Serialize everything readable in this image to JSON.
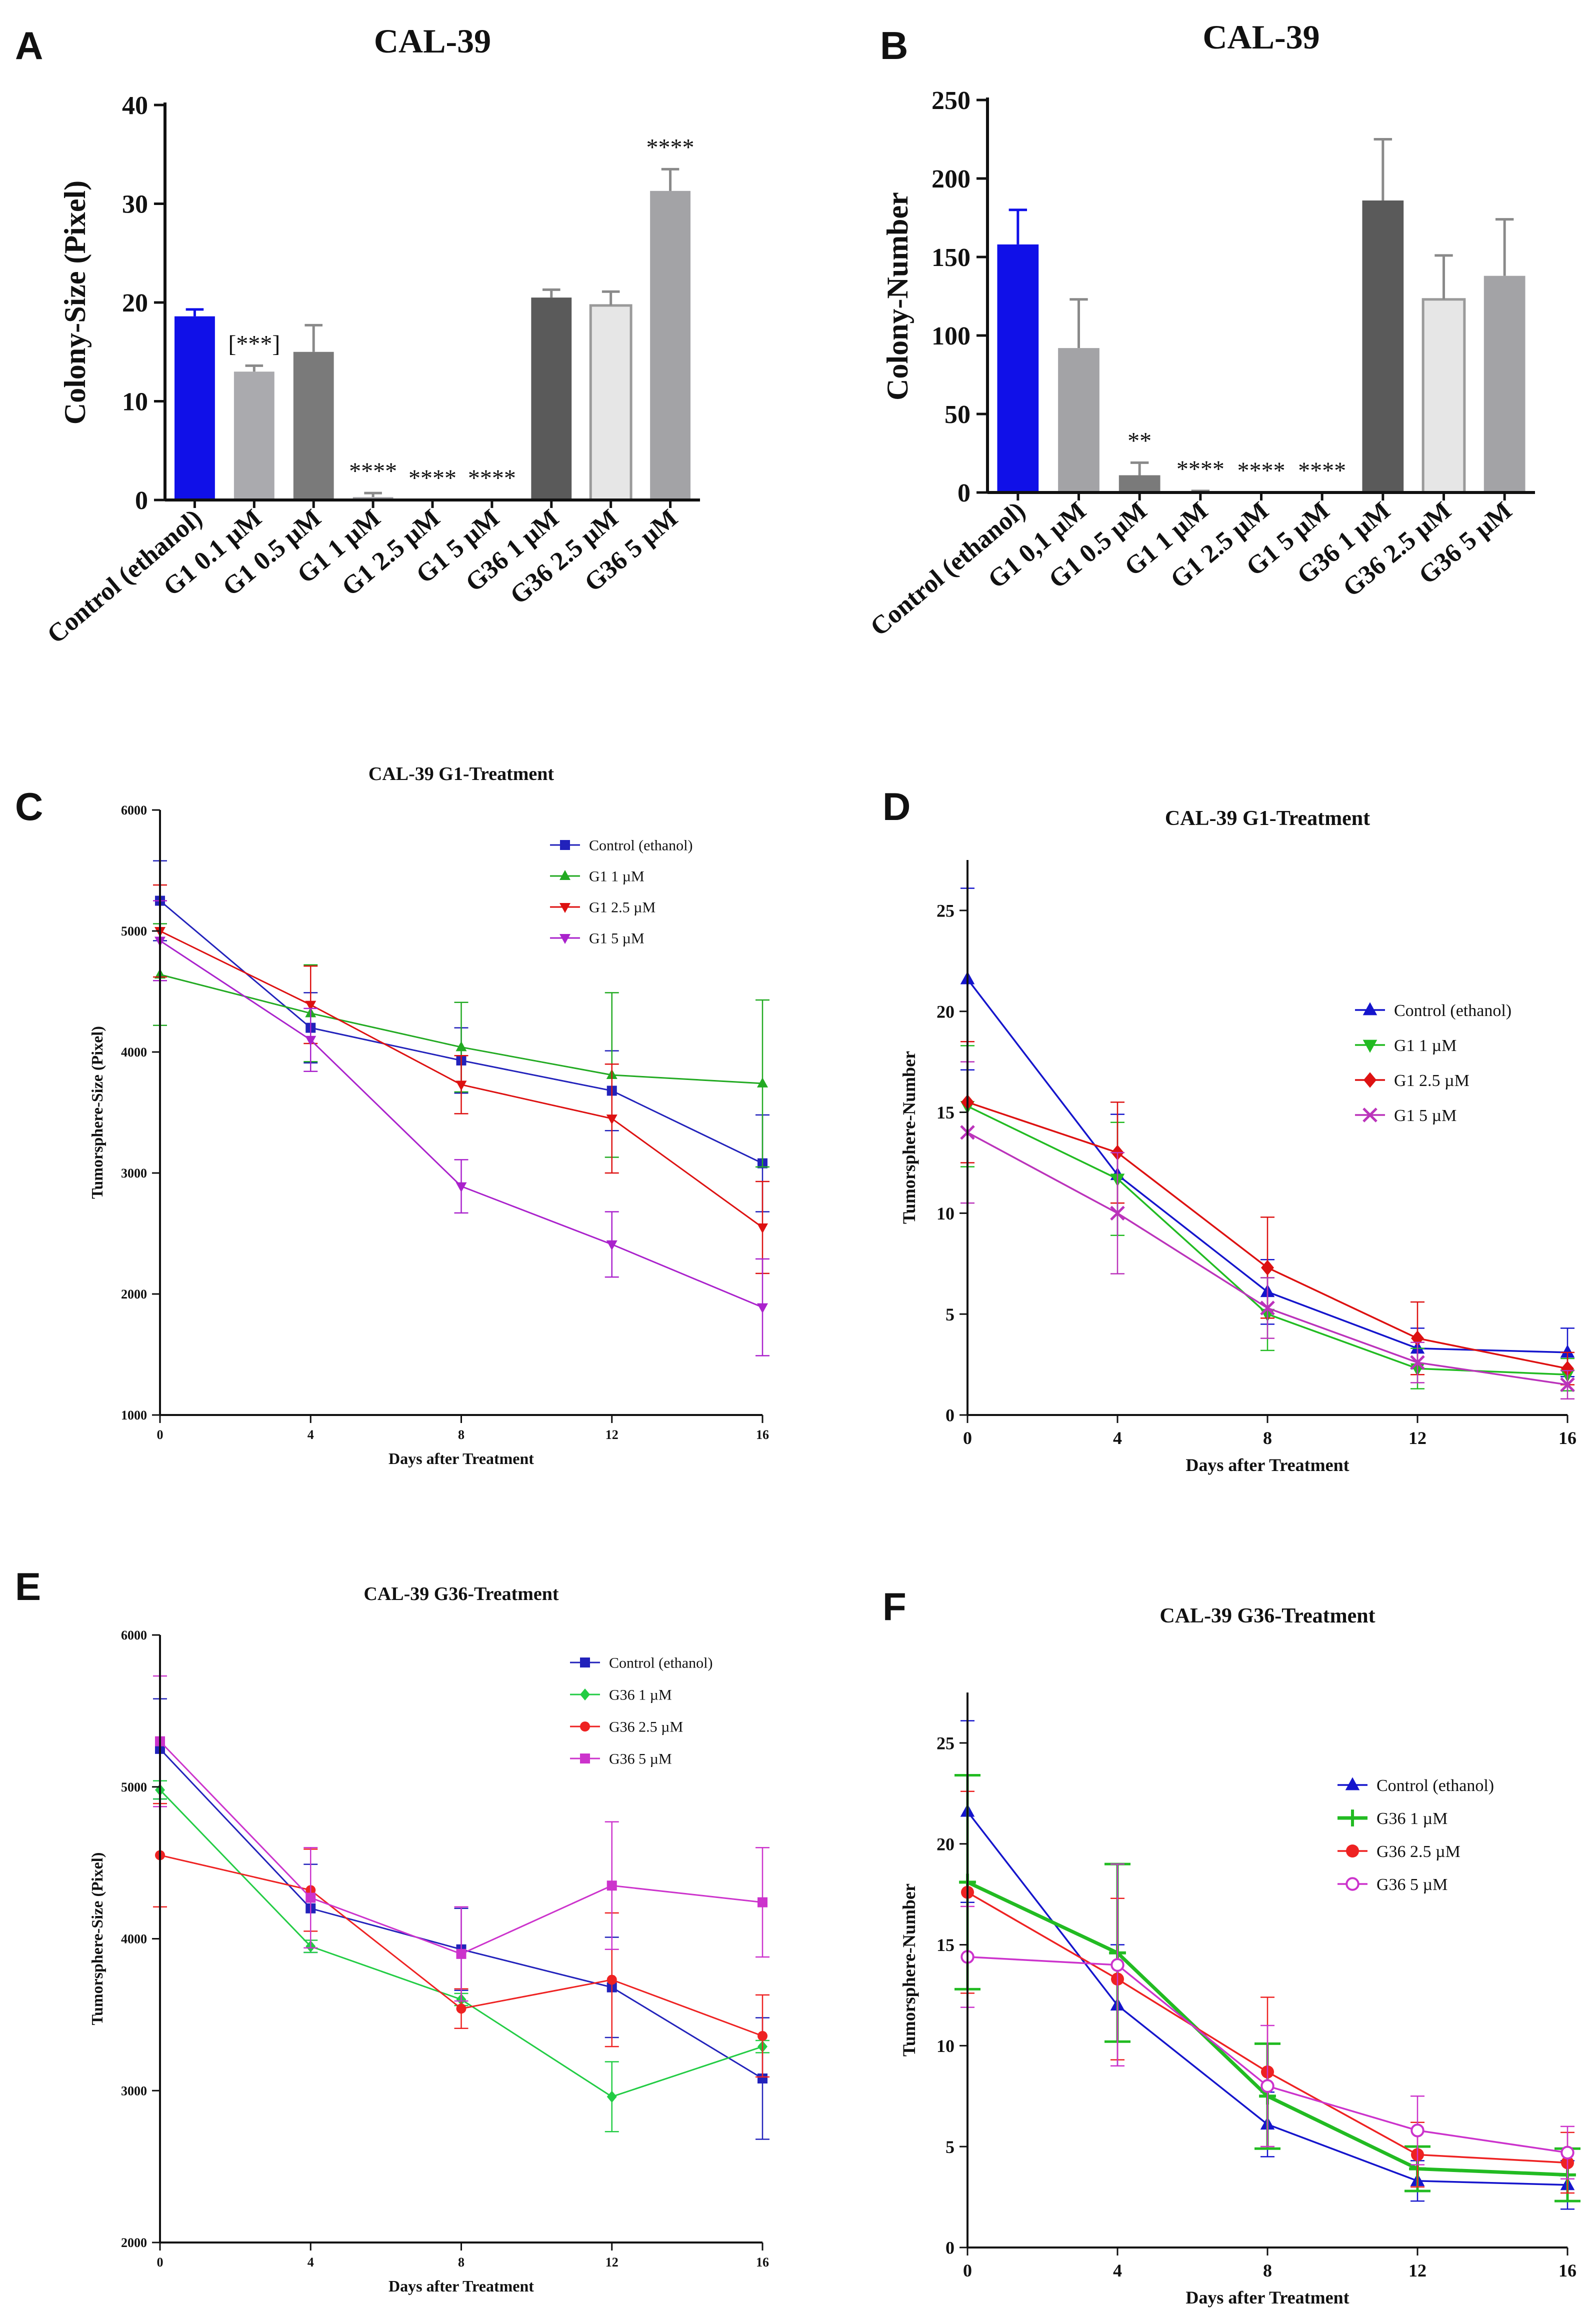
{
  "figure": {
    "panels": [
      "A",
      "B",
      "C",
      "D",
      "E",
      "F"
    ]
  },
  "chart_data": [
    {
      "id": "A",
      "type": "bar",
      "title": "CAL-39",
      "xlabel": "",
      "ylabel": "Colony-Size (Pixel)",
      "ylim": [
        0,
        40
      ],
      "yticks": [
        0,
        10,
        20,
        30,
        40
      ],
      "categories": [
        "Control (ethanol)",
        "G1 0.1 µM",
        "G1 0.5 µM",
        "G1 1 µM",
        "G1 2.5 µM",
        "G1 5 µM",
        "G36 1 µM",
        "G36 2.5 µM",
        "G36 5 µM"
      ],
      "values": [
        18.6,
        13.0,
        15.0,
        0.3,
        0,
        0,
        20.5,
        19.7,
        31.3
      ],
      "errors": [
        0.7,
        0.6,
        2.7,
        0.4,
        0,
        0,
        0.8,
        1.4,
        2.2
      ],
      "bar_colors": [
        "#1010e8",
        "#aaaaae",
        "#7a7a7a",
        "#aaaaae",
        "#aaaaae",
        "#aaaaae",
        "#5a5a5a",
        "#e6e6e6",
        "#a3a3a6"
      ],
      "significance": [
        "",
        "[***]",
        "",
        "****",
        "****",
        "****",
        "",
        "",
        "****"
      ]
    },
    {
      "id": "B",
      "type": "bar",
      "title": "CAL-39",
      "xlabel": "",
      "ylabel": "Colony-Number",
      "ylim": [
        0,
        250
      ],
      "yticks": [
        0,
        50,
        100,
        150,
        200,
        250
      ],
      "categories": [
        "Control (ethanol)",
        "G1 0,1 µM",
        "G1 0.5 µM",
        "G1 1 µM",
        "G1 2.5 µM",
        "G1 5 µM",
        "G36 1 µM",
        "G36 2.5 µM",
        "G36 5 µM"
      ],
      "values": [
        158,
        92,
        11,
        0.5,
        0,
        0,
        186,
        123,
        138
      ],
      "errors": [
        22,
        31,
        8,
        0.5,
        0,
        0,
        39,
        28,
        36
      ],
      "bar_colors": [
        "#1010e8",
        "#a3a3a6",
        "#7a7a7a",
        "#a3a3a6",
        "#a3a3a6",
        "#a3a3a6",
        "#5a5a5a",
        "#e6e6e6",
        "#a3a3a6"
      ],
      "significance": [
        "",
        "",
        "**",
        "****",
        "****",
        "****",
        "",
        "",
        ""
      ]
    },
    {
      "id": "C",
      "type": "line",
      "title": "CAL-39 G1-Treatment",
      "xlabel": "Days after Treatment",
      "ylabel": "Tumorsphere-Size (Pixel)",
      "x": [
        0,
        4,
        8,
        12,
        16
      ],
      "xlim": [
        0,
        16
      ],
      "ylim": [
        1000,
        6000
      ],
      "yticks": [
        1000,
        2000,
        3000,
        4000,
        5000,
        6000
      ],
      "legend_position": "top-right",
      "series": [
        {
          "name": "Control (ethanol)",
          "color": "#2222bb",
          "marker": "square",
          "values": [
            5250,
            4200,
            3930,
            3680,
            3080
          ],
          "errors": [
            330,
            290,
            270,
            330,
            400
          ]
        },
        {
          "name": "G1 1 µM",
          "color": "#22aa22",
          "marker": "triangle-up",
          "values": [
            4640,
            4320,
            4040,
            3810,
            3740
          ],
          "errors": [
            420,
            400,
            370,
            680,
            690
          ]
        },
        {
          "name": "G1 2.5 µM",
          "color": "#dd1111",
          "marker": "triangle-down",
          "values": [
            5000,
            4390,
            3730,
            3450,
            2550
          ],
          "errors": [
            380,
            320,
            240,
            450,
            380
          ]
        },
        {
          "name": "G1 5 µM",
          "color": "#aa22cc",
          "marker": "triangle-down",
          "values": [
            4920,
            4100,
            2890,
            2410,
            1890
          ],
          "errors": [
            330,
            260,
            220,
            270,
            400
          ]
        }
      ]
    },
    {
      "id": "D",
      "type": "line",
      "title": "CAL-39 G1-Treatment",
      "xlabel": "Days after Treatment",
      "ylabel": "Tumorsphere-Number",
      "x": [
        0,
        4,
        8,
        12,
        16
      ],
      "xlim": [
        0,
        16
      ],
      "ylim": [
        0,
        27.5
      ],
      "yticks": [
        0,
        5,
        10,
        15,
        20,
        25
      ],
      "legend_position": "right",
      "series": [
        {
          "name": "Control (ethanol)",
          "color": "#1515cc",
          "marker": "triangle-up",
          "values": [
            21.6,
            11.9,
            6.1,
            3.3,
            3.1
          ],
          "errors": [
            4.5,
            3.0,
            1.6,
            1.0,
            1.2
          ]
        },
        {
          "name": "G1 1 µM",
          "color": "#22bb22",
          "marker": "triangle-down",
          "values": [
            15.3,
            11.7,
            5.0,
            2.3,
            2.0
          ],
          "errors": [
            3.0,
            2.8,
            1.8,
            1.0,
            0.8
          ]
        },
        {
          "name": "G1 2.5 µM",
          "color": "#dd1111",
          "marker": "diamond",
          "values": [
            15.5,
            13.0,
            7.3,
            3.8,
            2.3
          ],
          "errors": [
            3.0,
            2.5,
            2.5,
            1.8,
            0.8
          ]
        },
        {
          "name": "G1 5 µM",
          "color": "#bb33bb",
          "marker": "x",
          "values": [
            14.0,
            10.0,
            5.3,
            2.6,
            1.5
          ],
          "errors": [
            3.5,
            3.0,
            1.5,
            1.0,
            0.7
          ]
        }
      ]
    },
    {
      "id": "E",
      "type": "line",
      "title": "CAL-39 G36-Treatment",
      "xlabel": "Days after Treatment",
      "ylabel": "Tumorsphere-Size (Pixel)",
      "x": [
        0,
        4,
        8,
        12,
        16
      ],
      "xlim": [
        0,
        16
      ],
      "ylim": [
        2000,
        6000
      ],
      "yticks": [
        2000,
        3000,
        4000,
        5000,
        6000
      ],
      "legend_position": "top-right",
      "series": [
        {
          "name": "Control (ethanol)",
          "color": "#2222bb",
          "marker": "square",
          "values": [
            5250,
            4200,
            3930,
            3680,
            3080
          ],
          "errors": [
            330,
            290,
            270,
            330,
            400
          ]
        },
        {
          "name": "G36 1 µM",
          "color": "#22cc44",
          "marker": "diamond",
          "values": [
            4980,
            3950,
            3600,
            2960,
            3290
          ],
          "errors": [
            60,
            40,
            40,
            230,
            40
          ]
        },
        {
          "name": "G36 2.5 µM",
          "color": "#ee2222",
          "marker": "circle",
          "values": [
            4550,
            4320,
            3540,
            3730,
            3360
          ],
          "errors": [
            340,
            270,
            130,
            440,
            270
          ]
        },
        {
          "name": "G36 5 µM",
          "color": "#cc33cc",
          "marker": "square",
          "values": [
            5300,
            4270,
            3900,
            4350,
            4240
          ],
          "errors": [
            430,
            330,
            310,
            420,
            360
          ]
        }
      ]
    },
    {
      "id": "F",
      "type": "line",
      "title": "CAL-39 G36-Treatment",
      "xlabel": "Days after Treatment",
      "ylabel": "Tumorsphere-Number",
      "x": [
        0,
        4,
        8,
        12,
        16
      ],
      "xlim": [
        0,
        16
      ],
      "ylim": [
        0,
        27.5
      ],
      "yticks": [
        0,
        5,
        10,
        15,
        20,
        25
      ],
      "legend_position": "right",
      "series": [
        {
          "name": "Control (ethanol)",
          "color": "#1515cc",
          "marker": "triangle-up",
          "values": [
            21.6,
            12.0,
            6.1,
            3.3,
            3.1
          ],
          "errors": [
            4.5,
            3.0,
            1.6,
            1.0,
            1.2
          ]
        },
        {
          "name": "G36 1 µM",
          "color": "#22bb22",
          "marker": "plus",
          "values": [
            18.1,
            14.6,
            7.5,
            3.9,
            3.6
          ],
          "errors": [
            5.3,
            4.4,
            2.6,
            1.1,
            1.3
          ]
        },
        {
          "name": "G36 2.5 µM",
          "color": "#ee2222",
          "marker": "circle",
          "values": [
            17.6,
            13.3,
            8.7,
            4.6,
            4.2
          ],
          "errors": [
            5.0,
            4.0,
            3.7,
            1.6,
            1.5
          ]
        },
        {
          "name": "G36 5 µM",
          "color": "#cc33cc",
          "marker": "circle-open",
          "values": [
            14.4,
            14.0,
            8.0,
            5.8,
            4.7
          ],
          "errors": [
            2.5,
            5.0,
            3.0,
            1.7,
            1.3
          ]
        }
      ]
    }
  ]
}
